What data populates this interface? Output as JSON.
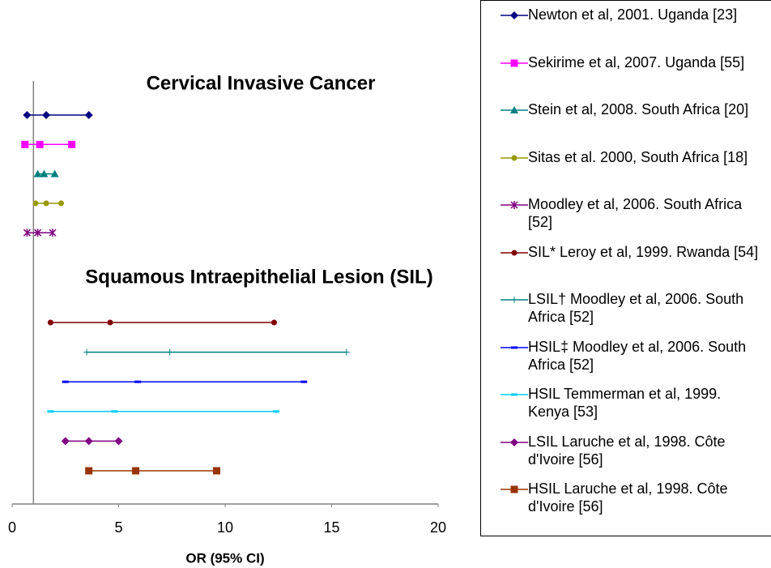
{
  "chart_data": {
    "type": "forest",
    "xlabel": "OR (95% CI)",
    "xlim": [
      0,
      20
    ],
    "xticks": [
      0,
      5,
      10,
      15,
      20
    ],
    "reference_line": 1,
    "annotations": [
      "Cervical Invasive Cancer",
      "Squamous Intraepithelial Lesion (SIL)"
    ],
    "series": [
      {
        "name": "Newton et al, 2001. Uganda [23]",
        "color": "#000080",
        "marker": "diamond",
        "values": [
          0.7,
          1.6,
          3.6
        ]
      },
      {
        "name": "Sekirime et al, 2007. Uganda [55]",
        "color": "#ff00ff",
        "marker": "square",
        "values": [
          0.6,
          1.3,
          2.8
        ]
      },
      {
        "name": "Stein et al, 2008. South Africa [20]",
        "color": "#008080",
        "marker": "triangle",
        "values": [
          1.2,
          1.5,
          2.0
        ]
      },
      {
        "name": "Sitas et al. 2000, South Africa [18]",
        "color": "#999900",
        "marker": "circle",
        "values": [
          1.1,
          1.6,
          2.3
        ]
      },
      {
        "name": "Moodley et al, 2006. South Africa [52]",
        "color": "#800080",
        "marker": "asterisk",
        "values": [
          0.7,
          1.2,
          1.9
        ]
      },
      {
        "name": "SIL* Leroy et al, 1999. Rwanda [54]",
        "color": "#800000",
        "marker": "circle",
        "values": [
          1.8,
          4.6,
          12.3
        ]
      },
      {
        "name": "LSIL† Moodley et al, 2006. South Africa [52]",
        "color": "#008080",
        "marker": "plus",
        "values": [
          3.5,
          7.4,
          15.7
        ]
      },
      {
        "name": "HSIL‡ Moodley et al, 2006. South Africa [52]",
        "color": "#0000ff",
        "marker": "dash",
        "values": [
          2.5,
          5.9,
          13.7
        ]
      },
      {
        "name": "HSIL Temmerman et al, 1999. Kenya [53]",
        "color": "#00ccff",
        "marker": "dash",
        "values": [
          1.8,
          4.8,
          12.4
        ]
      },
      {
        "name": "LSIL Laruche et al, 1998. Côte d'Ivoire [56]",
        "color": "#800080",
        "marker": "diamond",
        "values": [
          2.5,
          3.6,
          5.0
        ]
      },
      {
        "name": "HSIL Laruche et al, 1998. Côte d'Ivoire [56]",
        "color": "#993300",
        "marker": "square",
        "values": [
          3.6,
          5.8,
          9.6
        ]
      }
    ]
  }
}
